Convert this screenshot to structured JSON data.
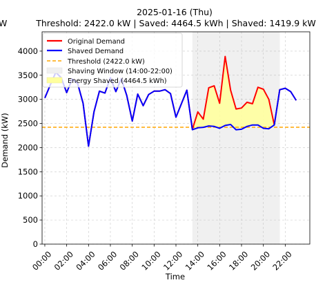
{
  "chart_data": {
    "type": "line",
    "title": "2025-01-16 (Thu)",
    "subtitle": "Threshold: 2422.0 kW | Saved: 4464.5 kWh | Shaved: 1419.9 kW",
    "side_clip_text": "W",
    "xlabel": "Time",
    "ylabel": "Demand (kW)",
    "ylim": [
      0,
      4400
    ],
    "xlim": [
      -0.25,
      24.25
    ],
    "y_ticks": [
      0,
      500,
      1000,
      1500,
      2000,
      2500,
      3000,
      3500,
      4000
    ],
    "y_tick_labels": [
      "0",
      "500",
      "1000",
      "1500",
      "2000",
      "2500",
      "3000",
      "3500",
      "4000"
    ],
    "x_ticks": [
      0,
      2,
      4,
      6,
      8,
      10,
      12,
      14,
      16,
      18,
      20,
      22
    ],
    "x_tick_labels": [
      "00:00",
      "02:00",
      "04:00",
      "06:00",
      "08:00",
      "10:00",
      "12:00",
      "14:00",
      "16:00",
      "18:00",
      "20:00",
      "22:00"
    ],
    "grid": true,
    "legend_position": "top-left",
    "x": [
      0,
      0.5,
      1,
      1.5,
      2,
      2.5,
      3,
      3.5,
      4,
      4.5,
      5,
      5.5,
      6,
      6.5,
      7,
      7.5,
      8,
      8.5,
      9,
      9.5,
      10,
      10.5,
      11,
      11.5,
      12,
      12.5,
      13,
      13.5,
      14,
      14.5,
      15,
      15.5,
      16,
      16.5,
      17,
      17.5,
      18,
      18.5,
      19,
      19.5,
      20,
      20.5,
      21,
      21.5,
      22,
      22.5,
      23,
      23.5
    ],
    "series": [
      {
        "name": "Original Demand",
        "color": "#ff0000",
        "values": [
          3030,
          3300,
          3560,
          3450,
          3140,
          3420,
          3330,
          2920,
          2030,
          2740,
          3170,
          3130,
          3450,
          3160,
          3430,
          3080,
          2550,
          3110,
          2870,
          3100,
          3170,
          3170,
          3200,
          3120,
          2630,
          2910,
          3190,
          2380,
          2740,
          2590,
          3240,
          3280,
          2920,
          3890,
          3190,
          2800,
          2820,
          2940,
          2910,
          3250,
          3210,
          3000,
          2470,
          3200,
          3230,
          3160,
          2980,
          null
        ]
      },
      {
        "name": "Shaved Demand",
        "color": "#0000ff",
        "values": [
          3030,
          3300,
          3560,
          3450,
          3140,
          3420,
          3330,
          2920,
          2030,
          2740,
          3170,
          3130,
          3450,
          3160,
          3430,
          3080,
          2550,
          3110,
          2870,
          3100,
          3170,
          3170,
          3200,
          3120,
          2630,
          2910,
          3190,
          2370,
          2410,
          2420,
          2450,
          2440,
          2400,
          2460,
          2480,
          2370,
          2380,
          2440,
          2470,
          2470,
          2400,
          2390,
          2470,
          3200,
          3230,
          3160,
          2980,
          null
        ]
      }
    ],
    "threshold": {
      "label": "Threshold (2422.0 kW)",
      "value": 2422.0,
      "color": "#ffa500"
    },
    "shaving_window": {
      "label": "Shaving Window (14:00-22:00)",
      "start": 13.5,
      "end": 21.5,
      "color": "#f0f0f0"
    },
    "energy_shaved": {
      "label": "Energy Shaved (4464.5 kWh)",
      "color": "#ffff9e"
    }
  }
}
